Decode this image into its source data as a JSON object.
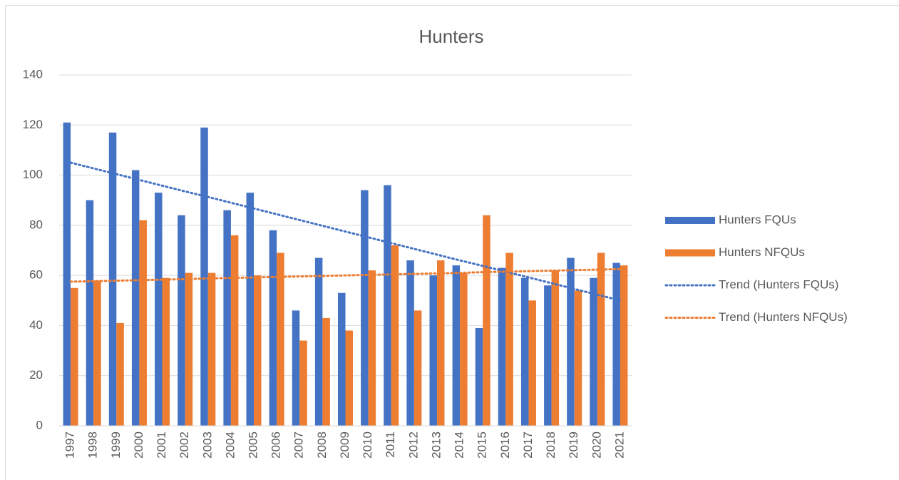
{
  "chart_data": {
    "type": "bar",
    "title": "Hunters",
    "categories": [
      "1997",
      "1998",
      "1999",
      "2000",
      "2001",
      "2002",
      "2003",
      "2004",
      "2005",
      "2006",
      "2007",
      "2008",
      "2009",
      "2010",
      "2011",
      "2012",
      "2013",
      "2014",
      "2015",
      "2016",
      "2017",
      "2018",
      "2019",
      "2020",
      "2021"
    ],
    "series": [
      {
        "name": "Hunters FQUs",
        "color": "#4472c4",
        "type": "bar",
        "values": [
          121,
          90,
          117,
          102,
          93,
          84,
          119,
          86,
          93,
          78,
          46,
          67,
          53,
          94,
          96,
          66,
          60,
          64,
          39,
          63,
          59,
          56,
          67,
          59,
          65
        ]
      },
      {
        "name": "Hunters NFQUs",
        "color": "#ed7d31",
        "type": "bar",
        "values": [
          55,
          58,
          41,
          82,
          59,
          61,
          61,
          76,
          60,
          69,
          34,
          43,
          38,
          62,
          72,
          46,
          66,
          61,
          84,
          69,
          50,
          62,
          54,
          69,
          64
        ]
      },
      {
        "name": "Trend (Hunters FQUs)",
        "color": "#4472c4",
        "type": "line",
        "dash": "dotted",
        "values": [
          105,
          102.7,
          100.4,
          98.1,
          95.8,
          93.5,
          91.3,
          89.0,
          86.7,
          84.4,
          82.1,
          79.8,
          77.5,
          75.2,
          72.9,
          70.6,
          68.3,
          66.0,
          63.8,
          61.5,
          59.2,
          56.9,
          54.6,
          52.3,
          50.0
        ]
      },
      {
        "name": "Trend (Hunters NFQUs)",
        "color": "#ed7d31",
        "type": "line",
        "dash": "dotted",
        "values": [
          57.5,
          57.7,
          57.9,
          58.1,
          58.3,
          58.5,
          58.8,
          59.0,
          59.2,
          59.4,
          59.6,
          59.8,
          60.0,
          60.2,
          60.4,
          60.6,
          60.8,
          61.0,
          61.3,
          61.5,
          61.7,
          61.9,
          62.1,
          62.3,
          62.5
        ]
      }
    ],
    "ylim": [
      0,
      140
    ],
    "yticks": [
      0,
      20,
      40,
      60,
      80,
      100,
      120,
      140
    ],
    "grid": true,
    "legend": "right"
  }
}
